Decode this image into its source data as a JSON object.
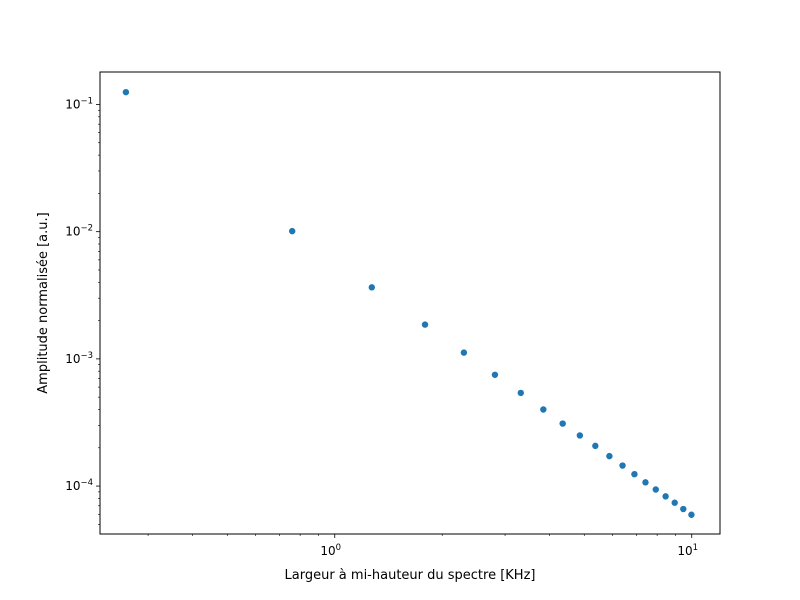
{
  "chart_data": {
    "type": "scatter",
    "title": "",
    "xlabel": "Largeur à mi-hauteur du spectre [KHz]",
    "ylabel": "Amplitude normalisée [a.u.]",
    "xscale": "log",
    "yscale": "log",
    "xlim": [
      0.22,
      12
    ],
    "ylim": [
      4.2e-05,
      0.18
    ],
    "grid": false,
    "legend": "none",
    "marker_color": "#1f77b4",
    "x_ticks": [
      {
        "base": "10",
        "exp": "0",
        "value": 1
      },
      {
        "base": "10",
        "exp": "1",
        "value": 10
      }
    ],
    "y_ticks": [
      {
        "base": "10",
        "exp": "−4",
        "value": 0.0001
      },
      {
        "base": "10",
        "exp": "−3",
        "value": 0.001
      },
      {
        "base": "10",
        "exp": "−2",
        "value": 0.01
      },
      {
        "base": "10",
        "exp": "−1",
        "value": 0.1
      }
    ],
    "series": [
      {
        "x": [
          0.26,
          0.76,
          1.27,
          1.79,
          2.3,
          2.81,
          3.32,
          3.84,
          4.35,
          4.86,
          5.37,
          5.88,
          6.4,
          6.91,
          7.42,
          7.93,
          8.45,
          8.96,
          9.47,
          9.98
        ],
        "y": [
          0.125,
          0.0101,
          0.00365,
          0.00186,
          0.00112,
          0.00075,
          0.00054,
          0.0004,
          0.00031,
          0.00025,
          0.000207,
          0.000172,
          0.000145,
          0.000124,
          0.000107,
          9.4e-05,
          8.3e-05,
          7.4e-05,
          6.6e-05,
          5.95e-05
        ]
      }
    ]
  }
}
